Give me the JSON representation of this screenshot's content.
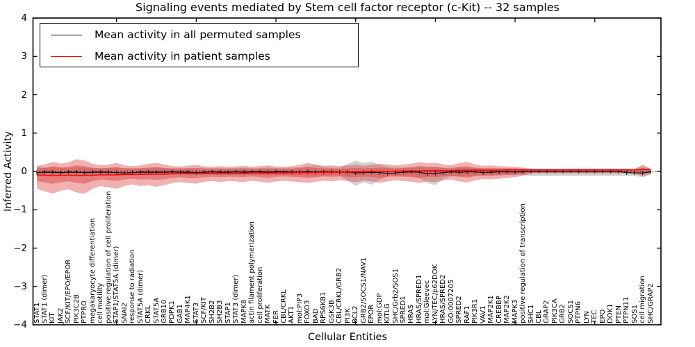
{
  "title": "Signaling events mediated by Stem cell factor receptor (c-Kit) -- 32 samples",
  "axes": {
    "xlabel": "Cellular Entities",
    "ylabel": "Inferred Activity",
    "ytick_values": [
      4,
      3,
      2,
      1,
      0,
      -1,
      -2,
      -3,
      -4
    ],
    "ytick_labels": [
      "4",
      "3",
      "2",
      "1",
      "0",
      "−1",
      "−2",
      "−3",
      "−4"
    ],
    "ylim": [
      -4,
      4
    ],
    "zero_line": true,
    "grid": false
  },
  "legend": {
    "position": "upper-left",
    "entries": [
      {
        "label": "Mean activity in all permuted samples",
        "color": "#000000"
      },
      {
        "label": "Mean activity in patient samples",
        "color": "#ff0000"
      }
    ]
  },
  "chart_data": {
    "type": "line",
    "title": "Signaling events mediated by Stem cell factor receptor (c-Kit) -- 32 samples",
    "xlabel": "Cellular Entities",
    "ylabel": "Inferred Activity",
    "ylim": [
      -4,
      4
    ],
    "legend_position": "upper-left",
    "categories": [
      "STAT1",
      "STAT1 (dimer)",
      "KIT",
      "JAK2",
      "SCF/KIT/EPO/EPOR",
      "PIK3C2B",
      "PTPRO",
      "megakaryocyte differentiation",
      "cell motility",
      "positive regulation of cell proliferation",
      "STAP1/STAT5A (dimer)",
      "SNAI2",
      "response to radiation",
      "STAT5A (dimer)",
      "CRKL",
      "STAT5A",
      "GRB10",
      "PDPK1",
      "GAB1",
      "MAP4K1",
      "STAT3",
      "SCF/KIT",
      "SH2B2",
      "SH2B3",
      "STAP1",
      "STAT3 (dimer)",
      "MAPK8",
      "actin filament polymerization",
      "cell proliferation",
      "MATK",
      "FER",
      "CBL/CRKL",
      "AKT1",
      "mol:PIP3",
      "FOXO3",
      "BAD",
      "RPS6KB1",
      "GSK3B",
      "CBL/CRKL/GRB2",
      "PI3K",
      "BCL2",
      "GRB2/SOCS1/NAV1",
      "EPOR",
      "mol:GDP",
      "KITLG",
      "SHC/Grb2/SOS1",
      "SPRED1",
      "HRAS",
      "HRAS/SPRED1",
      "mol:Gleevec",
      "LYN/TEC/p62DOK",
      "HRAS/SPRED2",
      "GO:0007205",
      "SPRED2",
      "RAF1",
      "PIK3R1",
      "VAV1",
      "MAP2K1",
      "CREBBP",
      "MAP2K2",
      "MAPK3",
      "positive regulation of transcription",
      "SHC1",
      "CBL",
      "GRAP2",
      "PIK3CA",
      "GRB2",
      "SOCS1",
      "PTPN6",
      "LYN",
      "TEC",
      "EPO",
      "DOK1",
      "PTEN",
      "PTPN11",
      "SOS1",
      "cell migration",
      "SHC/GRAP2"
    ],
    "series": [
      {
        "name": "Mean activity in all permuted samples",
        "color": "#000000",
        "marker": "tick",
        "values": [
          -0.03,
          -0.02,
          -0.02,
          -0.03,
          -0.02,
          -0.02,
          -0.03,
          -0.02,
          -0.02,
          -0.02,
          -0.03,
          -0.04,
          -0.03,
          -0.02,
          -0.02,
          -0.02,
          -0.02,
          -0.01,
          -0.02,
          -0.02,
          -0.03,
          -0.02,
          -0.01,
          -0.02,
          -0.02,
          -0.01,
          -0.02,
          -0.01,
          -0.01,
          -0.02,
          -0.01,
          -0.01,
          -0.02,
          -0.02,
          -0.01,
          -0.02,
          -0.01,
          -0.01,
          -0.02,
          -0.02,
          -0.04,
          -0.03,
          -0.02,
          -0.03,
          -0.05,
          -0.04,
          -0.02,
          -0.01,
          -0.02,
          -0.06,
          -0.05,
          -0.03,
          -0.01,
          -0.02,
          -0.01,
          -0.01,
          -0.03,
          -0.02,
          -0.01,
          -0.01,
          -0.01,
          -0.01,
          0.0,
          0.0,
          0.0,
          0.0,
          0.0,
          0.0,
          0.0,
          0.0,
          0.0,
          0.0,
          0.0,
          0.0,
          -0.03,
          -0.04,
          -0.04,
          -0.01
        ]
      },
      {
        "name": "Mean activity in patient samples",
        "color": "#ff0000",
        "marker": "none",
        "values": [
          -0.09,
          -0.1,
          -0.11,
          -0.1,
          -0.1,
          -0.11,
          -0.1,
          -0.1,
          -0.09,
          -0.09,
          -0.09,
          -0.08,
          -0.08,
          -0.08,
          -0.07,
          -0.07,
          -0.07,
          -0.06,
          -0.06,
          -0.06,
          -0.06,
          -0.05,
          -0.05,
          -0.05,
          -0.05,
          -0.05,
          -0.05,
          -0.04,
          -0.04,
          -0.04,
          -0.04,
          -0.04,
          -0.03,
          -0.03,
          -0.03,
          -0.03,
          -0.02,
          -0.02,
          -0.02,
          -0.02,
          -0.01,
          -0.01,
          0.0,
          0.0,
          0.0,
          0.01,
          0.01,
          0.01,
          0.01,
          0.02,
          0.02,
          0.02,
          0.02,
          0.03,
          0.03,
          0.03,
          0.03,
          0.03,
          0.03,
          0.04,
          0.04,
          0.04,
          0.04,
          0.04,
          0.04,
          0.04,
          0.04,
          0.04,
          0.04,
          0.04,
          0.04,
          0.04,
          0.04,
          0.04,
          0.04,
          0.04,
          0.05,
          0.05
        ]
      }
    ],
    "bands": [
      {
        "name": "permuted-samples-band",
        "color": "rgba(130,130,130,0.35)",
        "upper": [
          0.12,
          0.1,
          0.11,
          0.1,
          0.1,
          0.11,
          0.1,
          0.09,
          0.09,
          0.1,
          0.1,
          0.09,
          0.09,
          0.09,
          0.1,
          0.1,
          0.09,
          0.09,
          0.09,
          0.09,
          0.1,
          0.09,
          0.09,
          0.09,
          0.09,
          0.09,
          0.1,
          0.09,
          0.09,
          0.1,
          0.09,
          0.09,
          0.1,
          0.11,
          0.14,
          0.16,
          0.12,
          0.1,
          0.1,
          0.2,
          0.28,
          0.22,
          0.25,
          0.18,
          0.12,
          0.1,
          0.1,
          0.11,
          0.14,
          0.12,
          0.11,
          0.1,
          0.1,
          0.12,
          0.11,
          0.1,
          0.09,
          0.09,
          0.09,
          0.09,
          0.09,
          0.08,
          0.08,
          0.08,
          0.08,
          0.08,
          0.08,
          0.08,
          0.08,
          0.08,
          0.08,
          0.08,
          0.08,
          0.08,
          0.08,
          0.08,
          0.13,
          0.08
        ],
        "lower": [
          -0.12,
          -0.11,
          -0.11,
          -0.1,
          -0.1,
          -0.11,
          -0.1,
          -0.1,
          -0.09,
          -0.1,
          -0.1,
          -0.09,
          -0.09,
          -0.09,
          -0.1,
          -0.1,
          -0.09,
          -0.09,
          -0.09,
          -0.09,
          -0.1,
          -0.09,
          -0.09,
          -0.09,
          -0.09,
          -0.09,
          -0.1,
          -0.09,
          -0.09,
          -0.1,
          -0.09,
          -0.09,
          -0.1,
          -0.11,
          -0.13,
          -0.14,
          -0.11,
          -0.1,
          -0.1,
          -0.25,
          -0.38,
          -0.28,
          -0.35,
          -0.22,
          -0.13,
          -0.11,
          -0.11,
          -0.12,
          -0.18,
          -0.3,
          -0.36,
          -0.2,
          -0.12,
          -0.13,
          -0.12,
          -0.11,
          -0.1,
          -0.1,
          -0.1,
          -0.1,
          -0.1,
          -0.09,
          -0.12,
          -0.12,
          -0.12,
          -0.12,
          -0.12,
          -0.12,
          -0.12,
          -0.12,
          -0.12,
          -0.12,
          -0.12,
          -0.12,
          -0.12,
          -0.12,
          -0.15,
          -0.1
        ]
      },
      {
        "name": "patient-band-outer",
        "color": "rgba(220,60,60,0.40)",
        "upper": [
          0.15,
          0.18,
          0.25,
          0.2,
          0.24,
          0.32,
          0.28,
          0.2,
          0.16,
          0.18,
          0.22,
          0.16,
          0.14,
          0.16,
          0.2,
          0.22,
          0.18,
          0.14,
          0.13,
          0.15,
          0.17,
          0.13,
          0.12,
          0.14,
          0.12,
          0.13,
          0.15,
          0.12,
          0.14,
          0.16,
          0.13,
          0.12,
          0.14,
          0.17,
          0.22,
          0.18,
          0.15,
          0.16,
          0.14,
          0.16,
          0.18,
          0.15,
          0.17,
          0.2,
          0.18,
          0.16,
          0.18,
          0.2,
          0.24,
          0.21,
          0.23,
          0.18,
          0.16,
          0.22,
          0.25,
          0.18,
          0.15,
          0.16,
          0.14,
          0.13,
          0.12,
          0.1,
          0.06,
          0.05,
          0.05,
          0.05,
          0.05,
          0.05,
          0.05,
          0.05,
          0.05,
          0.05,
          0.05,
          0.05,
          0.05,
          0.05,
          0.18,
          0.07
        ],
        "lower": [
          -0.45,
          -0.52,
          -0.58,
          -0.5,
          -0.47,
          -0.55,
          -0.58,
          -0.45,
          -0.38,
          -0.42,
          -0.45,
          -0.38,
          -0.34,
          -0.38,
          -0.36,
          -0.4,
          -0.36,
          -0.3,
          -0.28,
          -0.3,
          -0.32,
          -0.27,
          -0.25,
          -0.28,
          -0.25,
          -0.26,
          -0.28,
          -0.24,
          -0.27,
          -0.3,
          -0.26,
          -0.24,
          -0.26,
          -0.28,
          -0.3,
          -0.27,
          -0.24,
          -0.26,
          -0.23,
          -0.25,
          -0.28,
          -0.24,
          -0.26,
          -0.3,
          -0.26,
          -0.23,
          -0.25,
          -0.27,
          -0.3,
          -0.26,
          -0.28,
          -0.23,
          -0.21,
          -0.26,
          -0.29,
          -0.23,
          -0.2,
          -0.21,
          -0.19,
          -0.17,
          -0.15,
          -0.12,
          -0.06,
          -0.05,
          -0.05,
          -0.05,
          -0.05,
          -0.05,
          -0.05,
          -0.05,
          -0.05,
          -0.05,
          -0.05,
          -0.05,
          -0.05,
          -0.05,
          -0.13,
          -0.06
        ]
      },
      {
        "name": "patient-band-inner",
        "color": "rgba(220,60,60,0.45)",
        "upper": [
          0.08,
          0.09,
          0.13,
          0.1,
          0.12,
          0.16,
          0.14,
          0.1,
          0.08,
          0.09,
          0.11,
          0.08,
          0.07,
          0.08,
          0.1,
          0.11,
          0.09,
          0.07,
          0.07,
          0.08,
          0.09,
          0.07,
          0.06,
          0.07,
          0.06,
          0.07,
          0.08,
          0.06,
          0.07,
          0.08,
          0.07,
          0.06,
          0.07,
          0.09,
          0.11,
          0.09,
          0.08,
          0.08,
          0.07,
          0.08,
          0.09,
          0.08,
          0.09,
          0.1,
          0.09,
          0.08,
          0.09,
          0.1,
          0.12,
          0.11,
          0.12,
          0.09,
          0.08,
          0.11,
          0.13,
          0.09,
          0.08,
          0.08,
          0.07,
          0.07,
          0.06,
          0.05,
          0.03,
          0.03,
          0.03,
          0.03,
          0.03,
          0.03,
          0.03,
          0.03,
          0.03,
          0.03,
          0.03,
          0.03,
          0.03,
          0.03,
          0.09,
          0.04
        ],
        "lower": [
          -0.25,
          -0.29,
          -0.32,
          -0.28,
          -0.26,
          -0.3,
          -0.32,
          -0.25,
          -0.21,
          -0.23,
          -0.25,
          -0.21,
          -0.19,
          -0.21,
          -0.2,
          -0.22,
          -0.2,
          -0.17,
          -0.15,
          -0.17,
          -0.18,
          -0.15,
          -0.14,
          -0.15,
          -0.14,
          -0.14,
          -0.15,
          -0.13,
          -0.15,
          -0.17,
          -0.14,
          -0.13,
          -0.14,
          -0.15,
          -0.17,
          -0.15,
          -0.13,
          -0.14,
          -0.13,
          -0.14,
          -0.15,
          -0.13,
          -0.14,
          -0.17,
          -0.14,
          -0.13,
          -0.14,
          -0.15,
          -0.17,
          -0.14,
          -0.15,
          -0.13,
          -0.12,
          -0.14,
          -0.16,
          -0.13,
          -0.11,
          -0.12,
          -0.1,
          -0.09,
          -0.08,
          -0.07,
          -0.03,
          -0.03,
          -0.03,
          -0.03,
          -0.03,
          -0.03,
          -0.03,
          -0.03,
          -0.03,
          -0.03,
          -0.03,
          -0.03,
          -0.03,
          -0.03,
          -0.07,
          -0.03
        ]
      }
    ]
  }
}
